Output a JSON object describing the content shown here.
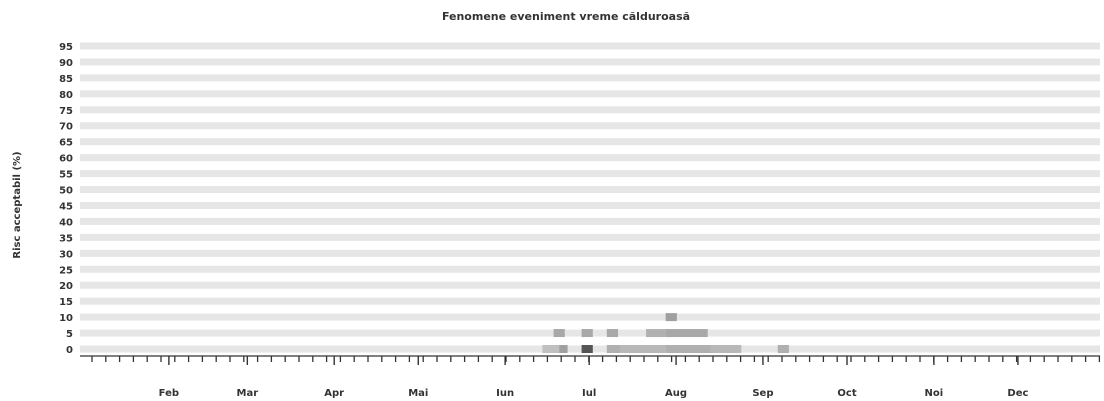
{
  "chart_data": {
    "type": "heatmap",
    "title": "Fenomene eveniment vreme călduroasă",
    "ylabel": "Risc acceptabil (%)",
    "xlabel": "",
    "y_ticks": [
      0,
      5,
      10,
      15,
      20,
      25,
      30,
      35,
      40,
      45,
      50,
      55,
      60,
      65,
      70,
      75,
      80,
      85,
      90,
      95
    ],
    "ylim": [
      0,
      95
    ],
    "x_ticks": [
      "Feb",
      "Mar",
      "Apr",
      "Mai",
      "Iun",
      "Iul",
      "Aug",
      "Sep",
      "Oct",
      "Noi",
      "Dec"
    ],
    "x_tick_days": [
      32,
      60,
      91,
      121,
      152,
      182,
      213,
      244,
      274,
      305,
      335
    ],
    "xlim_days": [
      1,
      365
    ],
    "grid": true,
    "cells": [
      {
        "day_start": 166,
        "day_end": 172,
        "risk": 0,
        "shade": "#c0c0c0"
      },
      {
        "day_start": 172,
        "day_end": 175,
        "risk": 0,
        "shade": "#a0a0a0"
      },
      {
        "day_start": 170,
        "day_end": 174,
        "risk": 5,
        "shade": "#a8a8a8"
      },
      {
        "day_start": 180,
        "day_end": 184,
        "risk": 0,
        "shade": "#555555"
      },
      {
        "day_start": 180,
        "day_end": 184,
        "risk": 5,
        "shade": "#a8a8a8"
      },
      {
        "day_start": 189,
        "day_end": 193,
        "risk": 5,
        "shade": "#a8a8a8"
      },
      {
        "day_start": 189,
        "day_end": 194,
        "risk": 0,
        "shade": "#b0b0b0"
      },
      {
        "day_start": 194,
        "day_end": 210,
        "risk": 0,
        "shade": "#b8b8b8"
      },
      {
        "day_start": 210,
        "day_end": 226,
        "risk": 0,
        "shade": "#b0b0b0"
      },
      {
        "day_start": 226,
        "day_end": 237,
        "risk": 0,
        "shade": "#b8b8b8"
      },
      {
        "day_start": 203,
        "day_end": 210,
        "risk": 5,
        "shade": "#b0b0b0"
      },
      {
        "day_start": 210,
        "day_end": 225,
        "risk": 5,
        "shade": "#a8a8a8"
      },
      {
        "day_start": 210,
        "day_end": 214,
        "risk": 10,
        "shade": "#a0a0a0"
      },
      {
        "day_start": 250,
        "day_end": 254,
        "risk": 0,
        "shade": "#b0b0b0"
      }
    ]
  }
}
